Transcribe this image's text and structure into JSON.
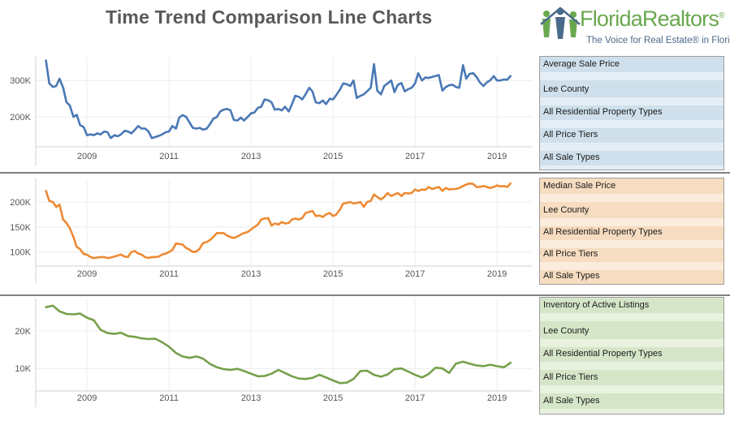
{
  "page_title": "Time Trend Comparison Line Charts",
  "logo": {
    "word": "FloridaRealtors",
    "reg": "®",
    "tagline": "The Voice for Real Estate® in Florida"
  },
  "colors": {
    "blue": "#4a78b5",
    "orange": "#ee8a33",
    "green": "#76a04b"
  },
  "panels": [
    {
      "color": "#cfe0ec",
      "band": "#e5eef5",
      "rows": [
        "Average Sale Price",
        "Lee County",
        "All Residential Property Types",
        "All Price Tiers",
        "All Sale Types"
      ]
    },
    {
      "color": "#f6dcc0",
      "band": "#fbecdc",
      "rows": [
        "Median Sale Price",
        "Lee County",
        "All Residential Property Types",
        "All Price Tiers",
        "All Sale Types"
      ]
    },
    {
      "color": "#d5e6c8",
      "band": "#e8f2df",
      "rows": [
        "Inventory of Active Listings",
        "Lee County",
        "All Residential Property Types",
        "All Price Tiers",
        "All Sale Types"
      ]
    }
  ],
  "chart_data": [
    {
      "type": "line",
      "title": "",
      "xlabel": "",
      "ylabel": "",
      "xlim": [
        2007.75,
        2019.85
      ],
      "ylim": [
        118000,
        365000
      ],
      "x_ticks": [
        2009,
        2011,
        2013,
        2015,
        2017,
        2019
      ],
      "x_tick_labels": [
        "2009",
        "2011",
        "2013",
        "2015",
        "2017",
        "2019"
      ],
      "y_ticks": [
        200000,
        300000
      ],
      "y_tick_labels": [
        "200K",
        "300K"
      ],
      "grid": true,
      "series": [
        {
          "color": "#4a78b5",
          "x": [
            2008.0,
            2008.08,
            2008.17,
            2008.25,
            2008.33,
            2008.42,
            2008.5,
            2008.58,
            2008.67,
            2008.75,
            2008.83,
            2008.92,
            2009.0,
            2009.08,
            2009.17,
            2009.25,
            2009.33,
            2009.42,
            2009.5,
            2009.58,
            2009.67,
            2009.75,
            2009.83,
            2009.92,
            2010.0,
            2010.08,
            2010.17,
            2010.25,
            2010.33,
            2010.42,
            2010.5,
            2010.58,
            2010.67,
            2010.75,
            2010.83,
            2010.92,
            2011.0,
            2011.08,
            2011.17,
            2011.25,
            2011.33,
            2011.42,
            2011.5,
            2011.58,
            2011.67,
            2011.75,
            2011.83,
            2011.92,
            2012.0,
            2012.08,
            2012.17,
            2012.25,
            2012.33,
            2012.42,
            2012.5,
            2012.58,
            2012.67,
            2012.75,
            2012.83,
            2012.92,
            2013.0,
            2013.08,
            2013.17,
            2013.25,
            2013.33,
            2013.42,
            2013.5,
            2013.58,
            2013.67,
            2013.75,
            2013.83,
            2013.92,
            2014.0,
            2014.08,
            2014.17,
            2014.25,
            2014.33,
            2014.42,
            2014.5,
            2014.58,
            2014.67,
            2014.75,
            2014.83,
            2014.92,
            2015.0,
            2015.08,
            2015.17,
            2015.25,
            2015.33,
            2015.42,
            2015.5,
            2015.58,
            2015.67,
            2015.75,
            2015.83,
            2015.92,
            2016.0,
            2016.08,
            2016.17,
            2016.25,
            2016.33,
            2016.42,
            2016.5,
            2016.58,
            2016.67,
            2016.75,
            2016.83,
            2016.92,
            2017.0,
            2017.08,
            2017.17,
            2017.25,
            2017.33,
            2017.42,
            2017.5,
            2017.58,
            2017.67,
            2017.75,
            2017.83,
            2017.92,
            2018.0,
            2018.08,
            2018.17,
            2018.25,
            2018.33,
            2018.42,
            2018.5,
            2018.58,
            2018.67,
            2018.75,
            2018.83,
            2018.92,
            2019.0,
            2019.08,
            2019.17,
            2019.25,
            2019.33
          ],
          "y": [
            355000,
            292000,
            282000,
            285000,
            305000,
            280000,
            240000,
            232000,
            200000,
            206000,
            178000,
            172000,
            150000,
            152000,
            150000,
            155000,
            152000,
            160000,
            158000,
            142000,
            150000,
            147000,
            152000,
            162000,
            160000,
            155000,
            165000,
            175000,
            168000,
            168000,
            160000,
            142000,
            145000,
            148000,
            152000,
            158000,
            160000,
            175000,
            168000,
            198000,
            205000,
            200000,
            185000,
            170000,
            168000,
            170000,
            165000,
            168000,
            180000,
            195000,
            200000,
            215000,
            220000,
            222000,
            218000,
            192000,
            190000,
            198000,
            190000,
            200000,
            210000,
            212000,
            225000,
            228000,
            248000,
            246000,
            240000,
            220000,
            222000,
            218000,
            228000,
            215000,
            235000,
            258000,
            255000,
            248000,
            262000,
            280000,
            270000,
            240000,
            238000,
            245000,
            235000,
            250000,
            248000,
            260000,
            275000,
            292000,
            290000,
            285000,
            300000,
            252000,
            258000,
            262000,
            270000,
            280000,
            345000,
            272000,
            262000,
            285000,
            292000,
            300000,
            268000,
            288000,
            293000,
            270000,
            276000,
            280000,
            292000,
            320000,
            300000,
            308000,
            307000,
            310000,
            312000,
            315000,
            272000,
            282000,
            287000,
            288000,
            282000,
            280000,
            342000,
            305000,
            318000,
            320000,
            310000,
            295000,
            285000,
            295000,
            300000,
            312000,
            300000,
            300000,
            303000,
            302000,
            312000
          ]
        }
      ]
    },
    {
      "type": "line",
      "title": "",
      "xlabel": "",
      "ylabel": "",
      "xlim": [
        2007.75,
        2019.85
      ],
      "ylim": [
        72000,
        247000
      ],
      "x_ticks": [
        2009,
        2011,
        2013,
        2015,
        2017,
        2019
      ],
      "x_tick_labels": [
        "2009",
        "2011",
        "2013",
        "2015",
        "2017",
        "2019"
      ],
      "y_ticks": [
        100000,
        150000,
        200000
      ],
      "y_tick_labels": [
        "100K",
        "150K",
        "200K"
      ],
      "grid": true,
      "series": [
        {
          "color": "#ee8a33",
          "x": [
            2008.0,
            2008.08,
            2008.17,
            2008.25,
            2008.33,
            2008.42,
            2008.5,
            2008.58,
            2008.67,
            2008.75,
            2008.83,
            2008.92,
            2009.0,
            2009.08,
            2009.17,
            2009.25,
            2009.33,
            2009.42,
            2009.5,
            2009.58,
            2009.67,
            2009.75,
            2009.83,
            2009.92,
            2010.0,
            2010.08,
            2010.17,
            2010.25,
            2010.33,
            2010.42,
            2010.5,
            2010.58,
            2010.67,
            2010.75,
            2010.83,
            2010.92,
            2011.0,
            2011.08,
            2011.17,
            2011.25,
            2011.33,
            2011.42,
            2011.5,
            2011.58,
            2011.67,
            2011.75,
            2011.83,
            2011.92,
            2012.0,
            2012.08,
            2012.17,
            2012.25,
            2012.33,
            2012.42,
            2012.5,
            2012.58,
            2012.67,
            2012.75,
            2012.83,
            2012.92,
            2013.0,
            2013.08,
            2013.17,
            2013.25,
            2013.33,
            2013.42,
            2013.5,
            2013.58,
            2013.67,
            2013.75,
            2013.83,
            2013.92,
            2014.0,
            2014.08,
            2014.17,
            2014.25,
            2014.33,
            2014.42,
            2014.5,
            2014.58,
            2014.67,
            2014.75,
            2014.83,
            2014.92,
            2015.0,
            2015.08,
            2015.17,
            2015.25,
            2015.33,
            2015.42,
            2015.5,
            2015.58,
            2015.67,
            2015.75,
            2015.83,
            2015.92,
            2016.0,
            2016.08,
            2016.17,
            2016.25,
            2016.33,
            2016.42,
            2016.5,
            2016.58,
            2016.67,
            2016.75,
            2016.83,
            2016.92,
            2017.0,
            2017.08,
            2017.17,
            2017.25,
            2017.33,
            2017.42,
            2017.5,
            2017.58,
            2017.67,
            2017.75,
            2017.83,
            2017.92,
            2018.0,
            2018.08,
            2018.17,
            2018.25,
            2018.33,
            2018.42,
            2018.5,
            2018.58,
            2018.67,
            2018.75,
            2018.83,
            2018.92,
            2019.0,
            2019.08,
            2019.17,
            2019.25,
            2019.33
          ],
          "y": [
            222000,
            202000,
            200000,
            190000,
            195000,
            165000,
            158000,
            148000,
            130000,
            110000,
            106000,
            96000,
            95000,
            90000,
            88000,
            89000,
            90000,
            90000,
            88000,
            89000,
            91000,
            93000,
            95000,
            91000,
            90000,
            100000,
            102000,
            97000,
            95000,
            90000,
            88000,
            90000,
            90000,
            91000,
            95000,
            97000,
            100000,
            104000,
            117000,
            116000,
            115000,
            108000,
            105000,
            100000,
            101000,
            107000,
            118000,
            120000,
            124000,
            130000,
            138000,
            138000,
            138000,
            133000,
            130000,
            128000,
            131000,
            135000,
            138000,
            140000,
            145000,
            150000,
            155000,
            165000,
            167000,
            168000,
            153000,
            157000,
            155000,
            160000,
            157000,
            158000,
            165000,
            167000,
            165000,
            168000,
            178000,
            180000,
            182000,
            172000,
            173000,
            170000,
            175000,
            178000,
            172000,
            175000,
            185000,
            197000,
            198000,
            200000,
            197000,
            198000,
            200000,
            190000,
            200000,
            202000,
            215000,
            210000,
            205000,
            210000,
            218000,
            212000,
            215000,
            218000,
            212000,
            218000,
            217000,
            218000,
            225000,
            222000,
            225000,
            224000,
            230000,
            226000,
            228000,
            230000,
            222000,
            228000,
            225000,
            226000,
            226000,
            228000,
            232000,
            235000,
            237000,
            236000,
            230000,
            230000,
            232000,
            230000,
            228000,
            230000,
            233000,
            231000,
            232000,
            230000,
            237000
          ]
        }
      ]
    },
    {
      "type": "line",
      "title": "",
      "xlabel": "",
      "ylabel": "",
      "xlim": [
        2007.75,
        2019.85
      ],
      "ylim": [
        4000,
        28600
      ],
      "x_ticks": [
        2009,
        2011,
        2013,
        2015,
        2017,
        2019
      ],
      "x_tick_labels": [
        "2009",
        "2011",
        "2013",
        "2015",
        "2017",
        "2019"
      ],
      "y_ticks": [
        10000,
        20000
      ],
      "y_tick_labels": [
        "10K",
        "20K"
      ],
      "grid": true,
      "series": [
        {
          "color": "#76a04b",
          "x": [
            2008.0,
            2008.17,
            2008.33,
            2008.5,
            2008.67,
            2008.83,
            2009.0,
            2009.17,
            2009.33,
            2009.5,
            2009.67,
            2009.83,
            2010.0,
            2010.17,
            2010.33,
            2010.5,
            2010.67,
            2010.83,
            2011.0,
            2011.17,
            2011.33,
            2011.5,
            2011.67,
            2011.83,
            2012.0,
            2012.17,
            2012.33,
            2012.5,
            2012.67,
            2012.83,
            2013.0,
            2013.17,
            2013.33,
            2013.5,
            2013.67,
            2013.83,
            2014.0,
            2014.17,
            2014.33,
            2014.5,
            2014.67,
            2014.83,
            2015.0,
            2015.17,
            2015.33,
            2015.5,
            2015.67,
            2015.83,
            2016.0,
            2016.17,
            2016.33,
            2016.5,
            2016.67,
            2016.83,
            2017.0,
            2017.17,
            2017.33,
            2017.5,
            2017.67,
            2017.83,
            2018.0,
            2018.17,
            2018.33,
            2018.5,
            2018.67,
            2018.83,
            2019.0,
            2019.17,
            2019.33
          ],
          "y": [
            26300,
            26700,
            25200,
            24500,
            24400,
            24600,
            23500,
            22800,
            20300,
            19400,
            19200,
            19500,
            18600,
            18400,
            18000,
            17800,
            17900,
            17000,
            15800,
            14100,
            13200,
            12800,
            13200,
            12600,
            11200,
            10300,
            9800,
            9600,
            9900,
            9300,
            8600,
            7900,
            8000,
            8600,
            9600,
            8800,
            7900,
            7300,
            7200,
            7500,
            8300,
            7600,
            6800,
            6100,
            6200,
            7200,
            9300,
            9400,
            8300,
            7800,
            8400,
            9800,
            10000,
            9200,
            8300,
            7600,
            8500,
            10200,
            10000,
            8800,
            11300,
            11800,
            11300,
            10800,
            10600,
            11000,
            10600,
            10300,
            11500
          ]
        }
      ]
    }
  ]
}
